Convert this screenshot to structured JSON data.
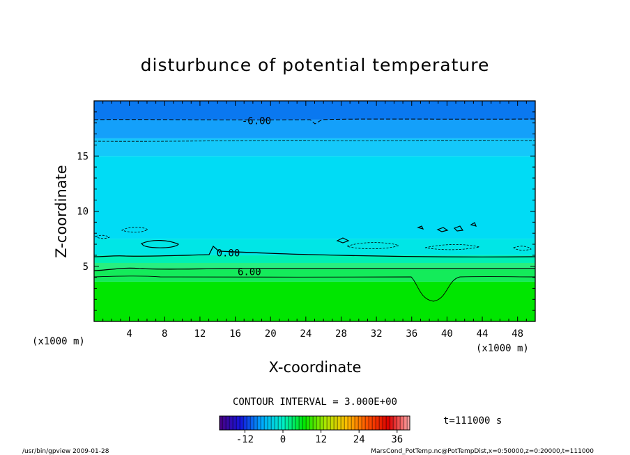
{
  "chart_data": {
    "type": "heatmap",
    "title": "disturbunce of potential temperature",
    "xlabel": "X-coordinate",
    "ylabel": "Z-coordinate",
    "x_unit": "(x1000 m)",
    "z_unit": "(x1000 m)",
    "xlim": [
      0,
      50
    ],
    "ylim": [
      0,
      20
    ],
    "x_ticks": [
      "4",
      "8",
      "12",
      "16",
      "20",
      "24",
      "28",
      "32",
      "36",
      "40",
      "44",
      "48"
    ],
    "y_ticks": [
      "5",
      "10",
      "15"
    ],
    "color_layers": [
      {
        "z_from": 0,
        "z_to": 3.6,
        "value": 4.5,
        "color": "#00e600"
      },
      {
        "z_from": 3.6,
        "z_to": 4.7,
        "value": 3.0,
        "color": "#14eb5a"
      },
      {
        "z_from": 4.7,
        "z_to": 5.3,
        "value": 1.5,
        "color": "#28ef80"
      },
      {
        "z_from": 5.3,
        "z_to": 6.0,
        "value": 0.0,
        "color": "#00f0b4"
      },
      {
        "z_from": 6.0,
        "z_to": 7.5,
        "value": -1.5,
        "color": "#00e6e6"
      },
      {
        "z_from": 7.5,
        "z_to": 15.0,
        "value": -3.0,
        "color": "#00dcf5"
      },
      {
        "z_from": 15.0,
        "z_to": 16.6,
        "value": -4.5,
        "color": "#14c8fa"
      },
      {
        "z_from": 16.6,
        "z_to": 18.3,
        "value": -6.0,
        "color": "#14a0fa"
      },
      {
        "z_from": 18.3,
        "z_to": 20.0,
        "value": -7.5,
        "color": "#0a78f0"
      }
    ],
    "contour_labels": [
      {
        "text": "-6.00",
        "x": 18.4,
        "z": 18.2
      },
      {
        "text": "0.00",
        "x": 15.2,
        "z": 6.2
      },
      {
        "text": "6.00",
        "x": 17.6,
        "z": 4.5
      }
    ],
    "contour_interval": "CONTOUR INTERVAL = 3.000E+00",
    "colorbar": {
      "ticks": [
        "-12",
        "0",
        "12",
        "24",
        "36"
      ],
      "tick_values": [
        -12,
        0,
        12,
        24,
        36
      ],
      "range": [
        -20,
        40
      ],
      "stops": [
        "#4b0082",
        "#1414dc",
        "#00aaff",
        "#00f0c8",
        "#00e600",
        "#aae600",
        "#ffbe00",
        "#ff5000",
        "#dc0000",
        "#ffaaaa"
      ]
    },
    "time_label": "t=111000 s"
  },
  "footer": {
    "left": "/usr/bin/gpview   2009-01-28",
    "right": "MarsCond_PotTemp.nc@PotTempDist,x=0:50000,z=0:20000,t=111000"
  }
}
